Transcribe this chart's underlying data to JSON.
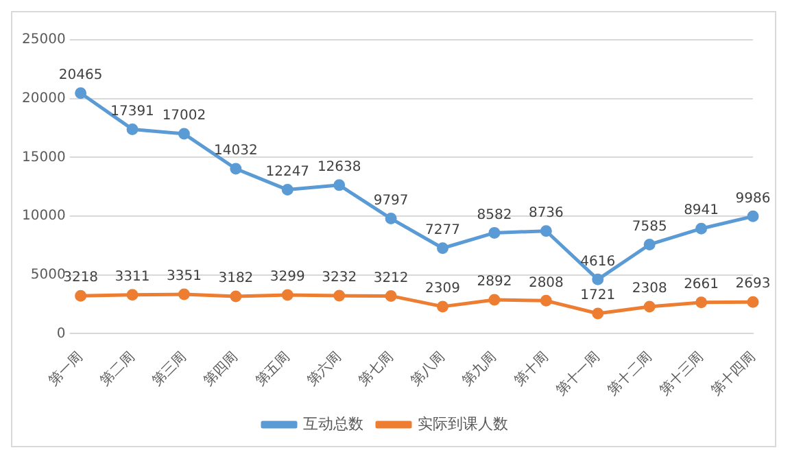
{
  "chart_data": {
    "type": "line",
    "categories": [
      "第一周",
      "第二周",
      "第三周",
      "第四周",
      "第五周",
      "第六周",
      "第七周",
      "第八周",
      "第九周",
      "第十周",
      "第十一周",
      "第十二周",
      "第十三周",
      "第十四周"
    ],
    "series": [
      {
        "name": "互动总数",
        "color": "#5b9bd5",
        "values": [
          20465,
          17391,
          17002,
          14032,
          12247,
          12638,
          9797,
          7277,
          8582,
          8736,
          4616,
          7585,
          8941,
          9986
        ]
      },
      {
        "name": "实际到课人数",
        "color": "#ed7d31",
        "values": [
          3218,
          3311,
          3351,
          3182,
          3299,
          3232,
          3212,
          2309,
          2892,
          2808,
          1721,
          2308,
          2661,
          2693
        ]
      }
    ],
    "ylim": [
      0,
      25000
    ],
    "yticks": [
      0,
      5000,
      10000,
      15000,
      20000,
      25000
    ],
    "grid": "y",
    "legend": "bottom",
    "marker": "circle",
    "line_style": "solid",
    "data_labels": true
  }
}
